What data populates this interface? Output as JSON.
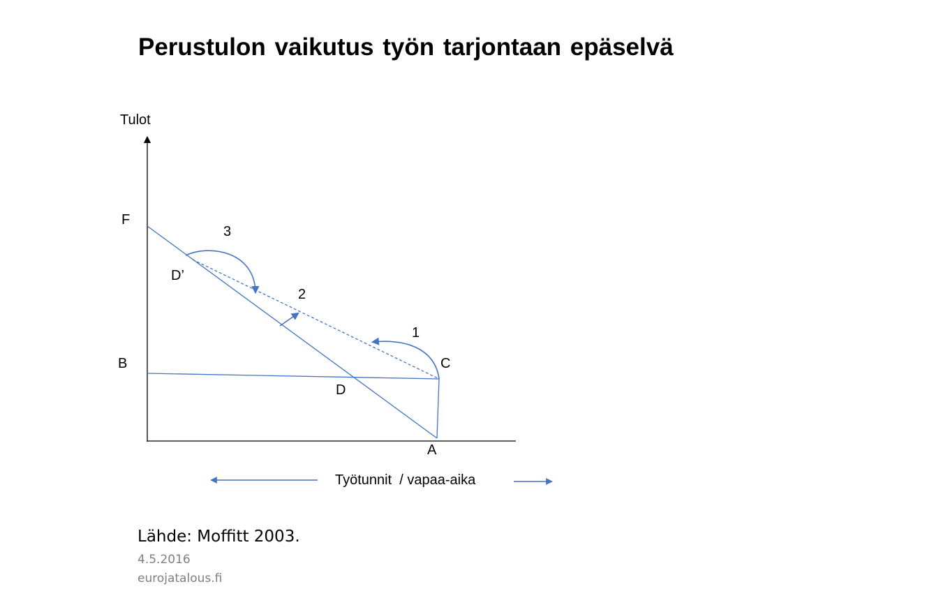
{
  "title": "Perustulon vaikutus työn tarjontaan epäselvä",
  "diagram": {
    "y_axis_label": "Tulot",
    "x_axis_label": "Työtunnit  / vapaa-aika",
    "point_labels": {
      "F": "F",
      "D_prime": "D’",
      "B": "B",
      "C": "C",
      "D": "D",
      "A": "A"
    },
    "arrow_labels": {
      "one": "1",
      "two": "2",
      "three": "3"
    },
    "colors": {
      "line": "#4472c4",
      "axis": "#000000"
    }
  },
  "footer": {
    "source": "Lähde: Moffitt 2003.",
    "date": "4.5.2016",
    "site": "eurojatalous.fi"
  }
}
